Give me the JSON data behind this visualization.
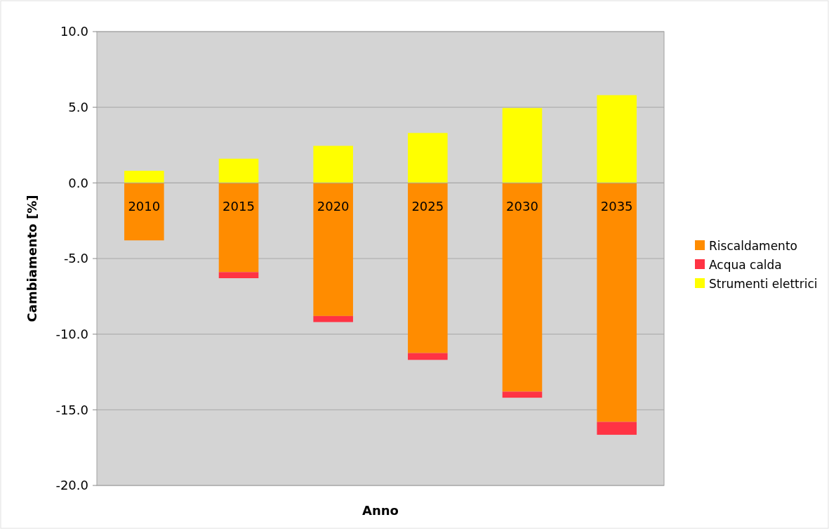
{
  "chart_data": {
    "type": "bar",
    "stacked": true,
    "xlabel": "Anno",
    "ylabel": "Cambiamento [%]",
    "categories": [
      "2010",
      "2015",
      "2020",
      "2025",
      "2030",
      "2035"
    ],
    "series": [
      {
        "name": "Riscaldamento",
        "color": "#ff8c00",
        "values": [
          -3.8,
          -5.9,
          -8.8,
          -11.25,
          -13.8,
          -15.8
        ]
      },
      {
        "name": "Acqua calda",
        "color": "#ff3344",
        "values": [
          0,
          -0.4,
          -0.4,
          -0.45,
          -0.4,
          -0.85
        ]
      },
      {
        "name": "Strumenti elettrici",
        "color": "#ffff00",
        "values": [
          0.8,
          1.6,
          2.45,
          3.3,
          4.95,
          5.8
        ]
      }
    ],
    "ylim": [
      -20,
      10
    ],
    "yticks": [
      {
        "value": -20,
        "label": "-20.0"
      },
      {
        "value": -15,
        "label": "-15.0"
      },
      {
        "value": -10,
        "label": "-10.0"
      },
      {
        "value": -5,
        "label": "-5.0"
      },
      {
        "value": 0,
        "label": "0.0"
      },
      {
        "value": 5,
        "label": "5.0"
      },
      {
        "value": 10,
        "label": "10.0"
      }
    ],
    "grid": "y",
    "legend": "right"
  }
}
